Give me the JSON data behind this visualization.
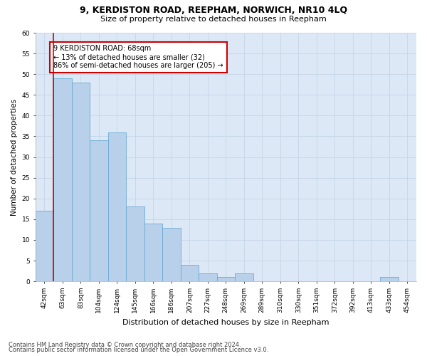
{
  "title": "9, KERDISTON ROAD, REEPHAM, NORWICH, NR10 4LQ",
  "subtitle": "Size of property relative to detached houses in Reepham",
  "xlabel": "Distribution of detached houses by size in Reepham",
  "ylabel": "Number of detached properties",
  "categories": [
    "42sqm",
    "63sqm",
    "83sqm",
    "104sqm",
    "124sqm",
    "145sqm",
    "166sqm",
    "186sqm",
    "207sqm",
    "227sqm",
    "248sqm",
    "269sqm",
    "289sqm",
    "310sqm",
    "330sqm",
    "351sqm",
    "372sqm",
    "392sqm",
    "413sqm",
    "433sqm",
    "454sqm"
  ],
  "values": [
    17,
    49,
    48,
    34,
    36,
    18,
    14,
    13,
    4,
    2,
    1,
    2,
    0,
    0,
    0,
    0,
    0,
    0,
    0,
    1,
    0
  ],
  "bar_color": "#b8d0ea",
  "bar_edge_color": "#6aaad4",
  "annotation_text_line1": "9 KERDISTON ROAD: 68sqm",
  "annotation_text_line2": "← 13% of detached houses are smaller (32)",
  "annotation_text_line3": "86% of semi-detached houses are larger (205) →",
  "annotation_box_facecolor": "#ffffff",
  "annotation_box_edgecolor": "#cc0000",
  "red_line_color": "#cc0000",
  "ylim": [
    0,
    60
  ],
  "yticks": [
    0,
    5,
    10,
    15,
    20,
    25,
    30,
    35,
    40,
    45,
    50,
    55,
    60
  ],
  "grid_color": "#c8d8ea",
  "background_color": "#dce8f5",
  "footer_line1": "Contains HM Land Registry data © Crown copyright and database right 2024.",
  "footer_line2": "Contains public sector information licensed under the Open Government Licence v3.0.",
  "title_fontsize": 9,
  "subtitle_fontsize": 8,
  "ylabel_fontsize": 7.5,
  "xlabel_fontsize": 8,
  "tick_fontsize": 6.5,
  "annotation_fontsize": 7,
  "footer_fontsize": 6
}
